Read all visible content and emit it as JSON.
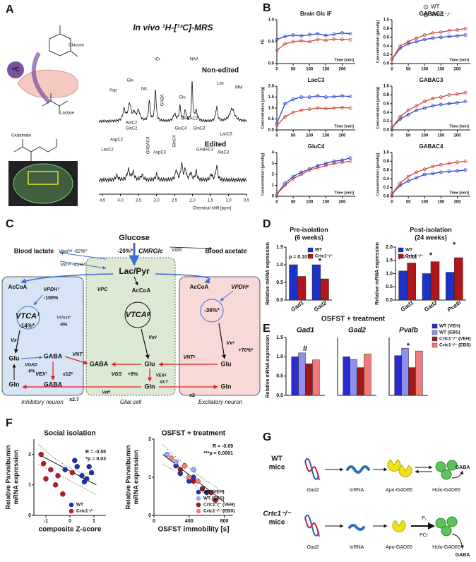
{
  "figure": {
    "letters": [
      "A",
      "B",
      "C",
      "D",
      "E",
      "F",
      "G"
    ],
    "A": [
      "In vivo ¹H-[¹³C]-MRS",
      "¹³C",
      "Glucose",
      "Lactate",
      "Glutamate",
      "Non-edited",
      "Edited",
      "Chemical shift [ppm]",
      "tCr",
      "NAA",
      "Glx",
      "Asp",
      "Glc",
      "GABA",
      "Glu",
      "Lac",
      "MM",
      "AlaC2",
      "GlxC2",
      "AspC2",
      "LacC2",
      "GABAC2",
      "GluC4",
      "GlnC3",
      "GABAC3",
      "LacC3",
      "AspC3",
      "AlaC3",
      "GlnC4",
      "GABAC4",
      "4.5",
      "4.0",
      "3.5",
      "3.0",
      "2.5",
      "2.0",
      "1.5",
      "1.0",
      "0.5"
    ],
    "C": [
      "Glucose",
      "CMRGlc",
      "-20%*",
      "Blood lactate",
      "Blood acetate",
      "Vdilᵍ",
      "Voutⁱⁿᵗ -62%*",
      "Vinⁱⁿᵗ -41%*",
      "Lac/Pyr",
      "AcCoA",
      "AcCoA",
      "AcCoA",
      "VPDHⁱ",
      "-100%",
      "VTCAⁱ",
      "-14%*",
      "VPC",
      "VTCAᵍ",
      "VPDHᵉ",
      "-36%*",
      "Vshuntⁱ",
      "-6%",
      "Vxⁱ",
      "Vxᵍ",
      "Vxᵉ",
      "+70%*",
      "Glu",
      "GABA",
      "VGAD",
      "-6%",
      "VEXⁱ",
      "x12*",
      "GABA",
      "Gln",
      "x2.7",
      "GABA",
      "Glu",
      "VNTⁱ",
      "VGS",
      "+9%",
      "Gln",
      "VNTᵉ",
      "Glu",
      "Gln",
      "x2",
      "VEXᵍ",
      "x3.7",
      "Veff",
      "Inhibitory neuron",
      "Glial cell",
      "Excitatory neuron"
    ],
    "E": [
      "OSFST + treatment"
    ],
    "G": [
      "WT",
      "mice",
      "Crtc1⁻/⁻",
      "mice",
      "Gad2",
      "mRNA",
      "Apo-GAD65",
      "Holo-GAD65",
      "GABA",
      "Gad2",
      "mRNA",
      "Apo-GAD65",
      "Holo-GAD65",
      "GABA",
      "Pᵢ",
      "PCr"
    ]
  },
  "chart_data": [
    {
      "type": "line",
      "title": "Brain Glc IF",
      "ylabel": "FE",
      "xlabel": "Time [min]",
      "legend": "top-right",
      "x": [
        0,
        25,
        50,
        75,
        100,
        125,
        150,
        175,
        200,
        225
      ],
      "xlim": [
        0,
        240
      ],
      "xticks": [
        0,
        50,
        100,
        150,
        200
      ],
      "ylim": [
        0,
        1
      ],
      "yticks": [
        {
          "value": 0,
          "label": "0.0"
        },
        0.5,
        {
          "value": 1,
          "label": "1.0"
        }
      ],
      "series": [
        {
          "name": "WT",
          "color": "#2b45d4",
          "values": [
            0.55,
            0.62,
            0.65,
            0.63,
            0.66,
            0.68,
            0.64,
            0.67,
            0.7,
            0.68
          ]
        },
        {
          "name": "Crtc1⁻/⁻",
          "color": "#d2453b",
          "values": [
            0.3,
            0.45,
            0.5,
            0.52,
            0.5,
            0.55,
            0.53,
            0.56,
            0.55,
            0.54
          ]
        }
      ]
    },
    {
      "type": "line",
      "title": "GABAC2",
      "ylabel": "Concentration [µmol/g]",
      "xlabel": "Time [min]",
      "x": [
        0,
        25,
        50,
        75,
        100,
        125,
        150,
        175,
        200,
        225
      ],
      "xlim": [
        0,
        240
      ],
      "xticks": [
        0,
        50,
        100,
        150,
        200
      ],
      "ylim": [
        0,
        1
      ],
      "yticks": [
        {
          "value": 0,
          "label": "0.0"
        },
        0.2,
        0.4,
        0.6,
        0.8,
        {
          "value": 1,
          "label": "1.0"
        }
      ],
      "series": [
        {
          "name": "WT",
          "color": "#2b45d4",
          "values": [
            0.1,
            0.35,
            0.45,
            0.5,
            0.55,
            0.58,
            0.6,
            0.62,
            0.63,
            0.65
          ]
        },
        {
          "name": "Crtc1⁻/⁻",
          "color": "#d2453b",
          "values": [
            0.1,
            0.4,
            0.5,
            0.58,
            0.65,
            0.7,
            0.72,
            0.75,
            0.77,
            0.8
          ]
        }
      ]
    },
    {
      "type": "line",
      "title": "LacC3",
      "ylabel": "Concentration [µmol/g]",
      "xlabel": "Time [min]",
      "x": [
        0,
        25,
        50,
        75,
        100,
        125,
        150,
        175,
        200,
        225
      ],
      "xlim": [
        0,
        240
      ],
      "xticks": [
        0,
        50,
        100,
        150,
        200
      ],
      "ylim": [
        0,
        2
      ],
      "yticks": [
        {
          "value": 0,
          "label": "0.0"
        },
        0.5,
        {
          "value": 1,
          "label": "1.0"
        },
        1.5,
        {
          "value": 2,
          "label": "2.0"
        }
      ],
      "series": [
        {
          "name": "WT",
          "color": "#2b45d4",
          "values": [
            0.3,
            1.2,
            1.4,
            1.5,
            1.5,
            1.55,
            1.5,
            1.52,
            1.55,
            1.53
          ]
        },
        {
          "name": "Crtc1⁻/⁻",
          "color": "#d2453b",
          "values": [
            0.2,
            0.6,
            0.8,
            0.9,
            0.95,
            1.0,
            0.98,
            1.0,
            1.02,
            1.0
          ]
        }
      ]
    },
    {
      "type": "line",
      "title": "GABAC3",
      "ylabel": "Concentration [µmol/g]",
      "xlabel": "Time [min]",
      "x": [
        0,
        25,
        50,
        75,
        100,
        125,
        150,
        175,
        200,
        225
      ],
      "xlim": [
        0,
        240
      ],
      "xticks": [
        0,
        50,
        100,
        150,
        200
      ],
      "ylim": [
        0,
        1
      ],
      "yticks": [
        {
          "value": 0,
          "label": "0.0"
        },
        0.2,
        0.4,
        0.6,
        0.8,
        {
          "value": 1,
          "label": "1.0"
        }
      ],
      "series": [
        {
          "name": "WT",
          "color": "#2b45d4",
          "values": [
            0.05,
            0.25,
            0.35,
            0.45,
            0.5,
            0.55,
            0.58,
            0.6,
            0.62,
            0.65
          ]
        },
        {
          "name": "Crtc1⁻/⁻",
          "color": "#d2453b",
          "values": [
            0.05,
            0.3,
            0.45,
            0.55,
            0.65,
            0.72,
            0.75,
            0.8,
            0.82,
            0.85
          ]
        }
      ]
    },
    {
      "type": "line",
      "title": "GluC4",
      "ylabel": "Concentration [µmol/g]",
      "xlabel": "Time [min]",
      "x": [
        0,
        25,
        50,
        75,
        100,
        125,
        150,
        175,
        200,
        225
      ],
      "xlim": [
        0,
        240
      ],
      "xticks": [
        0,
        50,
        100,
        150,
        200
      ],
      "ylim": [
        0,
        4
      ],
      "yticks": [
        0,
        1,
        2,
        3,
        4
      ],
      "series": [
        {
          "name": "WT",
          "color": "#2b45d4",
          "values": [
            0.2,
            1.2,
            1.8,
            2.2,
            2.5,
            2.8,
            3.0,
            3.2,
            3.3,
            3.5
          ]
        },
        {
          "name": "Crtc1⁻/⁻",
          "color": "#d2453b",
          "values": [
            0.2,
            1.0,
            1.6,
            2.0,
            2.4,
            2.6,
            2.8,
            3.0,
            3.1,
            3.2
          ]
        }
      ]
    },
    {
      "type": "line",
      "title": "GABAC4",
      "ylabel": "Concentration [µmol/g]",
      "xlabel": "Time [min]",
      "x": [
        0,
        25,
        50,
        75,
        100,
        125,
        150,
        175,
        200,
        225
      ],
      "xlim": [
        0,
        240
      ],
      "xticks": [
        0,
        50,
        100,
        150,
        200
      ],
      "ylim": [
        0,
        1
      ],
      "yticks": [
        {
          "value": 0,
          "label": "0.0"
        },
        0.2,
        0.4,
        0.6,
        0.8,
        {
          "value": 1,
          "label": "1.0"
        }
      ],
      "series": [
        {
          "name": "WT",
          "color": "#2b45d4",
          "values": [
            0.05,
            0.25,
            0.35,
            0.42,
            0.5,
            0.52,
            0.55,
            0.57,
            0.58,
            0.6
          ]
        },
        {
          "name": "Crtc1⁻/⁻",
          "color": "#d2453b",
          "values": [
            0.05,
            0.3,
            0.45,
            0.55,
            0.62,
            0.68,
            0.72,
            0.75,
            0.78,
            0.8
          ]
        }
      ]
    },
    {
      "type": "bar",
      "title": "Pre-isolation",
      "subtitle": "(6 weeks)",
      "ylabel": "Relative mRNA expression",
      "legend": "top-right",
      "categories": [
        "Gad1",
        "Gad2"
      ],
      "ylim": [
        0,
        1.5
      ],
      "yticks": [
        {
          "value": 0,
          "label": "0.0"
        },
        0.5,
        {
          "value": 1,
          "label": "1.0"
        },
        1.5
      ],
      "annotations": [
        "p = 0.10",
        "*"
      ],
      "series": [
        {
          "name": "WT",
          "color": "#1b33c9",
          "values": [
            1.0,
            1.0
          ]
        },
        {
          "name": "Crtc1⁻/⁻",
          "color": "#b2161b",
          "values": [
            0.67,
            0.6
          ]
        }
      ]
    },
    {
      "type": "bar",
      "title": "Post-isolation",
      "subtitle": "(24 weeks)",
      "ylabel": "Relative mRNA expression",
      "legend": "top-left",
      "categories": [
        "Gad1",
        "Gad2",
        "Pvalb"
      ],
      "ylim": [
        0,
        2
      ],
      "yticks": [
        {
          "value": 0,
          "label": "0.0"
        },
        0.5,
        {
          "value": 1,
          "label": "1.0"
        },
        1.5,
        {
          "value": 2,
          "label": "2.0"
        }
      ],
      "annotations": [
        "p = 0.11",
        "*",
        "*"
      ],
      "series": [
        {
          "name": "WT",
          "color": "#1b33c9",
          "values": [
            1.1,
            1.0,
            1.05
          ]
        },
        {
          "name": "Crtc1⁻/⁻",
          "color": "#b2161b",
          "values": [
            1.4,
            1.45,
            1.6
          ]
        }
      ]
    },
    {
      "type": "bar",
      "title": "Gad1",
      "ylabel": "Relative mRNA expression",
      "categories": [
        null
      ],
      "ylim": [
        0,
        1.5
      ],
      "yticks": [
        {
          "value": 0,
          "label": "0.0"
        },
        0.5,
        {
          "value": 1,
          "label": "1.0"
        },
        1.5
      ],
      "annotations": [
        "#"
      ],
      "series": [
        {
          "name": "WT (VEH)",
          "color": "#2b2bd6",
          "values": [
            1.0
          ]
        },
        {
          "name": "WT (EBS)",
          "color": "#8f8fef",
          "values": [
            1.1
          ]
        },
        {
          "name": "Crtc1⁻/⁻ (VEH)",
          "color": "#a01818",
          "values": [
            0.82
          ]
        },
        {
          "name": "Crtc1⁻/⁻ (EBS)",
          "color": "#f07a7a",
          "values": [
            0.92
          ]
        }
      ]
    },
    {
      "type": "bar",
      "title": "Gad2",
      "categories": [
        null
      ],
      "ylim": [
        0,
        1.5
      ],
      "annotations": [
        "*"
      ],
      "series": [
        {
          "name": "WT (VEH)",
          "color": "#2b2bd6",
          "values": [
            1.0
          ]
        },
        {
          "name": "WT (EBS)",
          "color": "#8f8fef",
          "values": [
            0.93
          ]
        },
        {
          "name": "Crtc1⁻/⁻ (VEH)",
          "color": "#a01818",
          "values": [
            0.72
          ]
        },
        {
          "name": "Crtc1⁻/⁻ (EBS)",
          "color": "#f07a7a",
          "values": [
            1.07
          ]
        }
      ]
    },
    {
      "type": "bar",
      "title": "Pvalb",
      "categories": [
        null
      ],
      "ylim": [
        0,
        1.5
      ],
      "annotations": [
        "*"
      ],
      "legend": "right",
      "series": [
        {
          "name": "WT (VEH)",
          "color": "#2b2bd6",
          "values": [
            1.03
          ]
        },
        {
          "name": "WT (EBS)",
          "color": "#8f8fef",
          "values": [
            1.22
          ]
        },
        {
          "name": "Crtc1⁻/⁻ (VEH)",
          "color": "#a01818",
          "values": [
            0.72
          ]
        },
        {
          "name": "Crtc1⁻/⁻ (EBS)",
          "color": "#f07a7a",
          "values": [
            1.15
          ]
        }
      ]
    },
    {
      "type": "scatter",
      "title": "Social isolation",
      "xlabel": "composite Z-score",
      "ylabel": [
        "Relative Parvalbumin",
        "mRNA expression"
      ],
      "legend": "bottom-right",
      "annotations": [
        "R = -0.55",
        "*p = 0.03"
      ],
      "xlim": [
        -1.5,
        1.5
      ],
      "xticks": [
        -1,
        0,
        1
      ],
      "ylim": [
        0,
        2.5
      ],
      "yticks": [
        0,
        1,
        2
      ],
      "series": [
        {
          "name": "WT",
          "color": "#1b2fbf",
          "x": [
            -0.2,
            0.3,
            0.5,
            0.7,
            0.8,
            0.9,
            0.2,
            0.6
          ],
          "values": [
            1.5,
            1.6,
            1.3,
            1.2,
            1.6,
            1.4,
            1.8,
            1.1
          ]
        },
        {
          "name": "Crtc1⁻/⁻",
          "color": "#c0161b",
          "x": [
            -1.1,
            -1.0,
            -0.8,
            -0.6,
            -0.3,
            -0.5,
            0.1,
            -1.2
          ],
          "values": [
            1.7,
            1.2,
            1.5,
            1.0,
            0.7,
            1.3,
            1.4,
            2.0
          ]
        }
      ]
    },
    {
      "type": "scatter",
      "title": "OSFST + treatment",
      "xlabel": "OSFST immobility [s]",
      "ylabel": [
        "Relative Parvalbumin",
        "mRNA expression"
      ],
      "legend": "bottom-right",
      "annotations": [
        "R = -0.69",
        "***p = 0.0001"
      ],
      "xlim": [
        0,
        900
      ],
      "xticks": [
        0,
        400,
        800
      ],
      "ylim": [
        0,
        2
      ],
      "yticks": [
        0,
        1,
        2
      ],
      "series": [
        {
          "name": "WT (VEH)",
          "color": "#1f2fbf",
          "x": [
            250,
            300,
            400,
            450,
            600
          ],
          "values": [
            1.3,
            1.1,
            0.9,
            1.0,
            0.6
          ]
        },
        {
          "name": "WT (EBS)",
          "color": "#9ea8f0",
          "x": [
            150,
            250,
            350,
            450
          ],
          "values": [
            1.6,
            1.4,
            1.3,
            1.2
          ]
        },
        {
          "name": "Crtc1⁻/⁻ (VEH)",
          "color": "#a01818",
          "x": [
            300,
            450,
            550,
            650,
            700
          ],
          "values": [
            1.2,
            0.9,
            0.7,
            0.6,
            0.4
          ]
        },
        {
          "name": "Crtc1⁻/⁻ (EBS)",
          "color": "#f08080",
          "x": [
            200,
            350,
            400,
            500
          ],
          "values": [
            1.5,
            1.3,
            1.0,
            0.9
          ]
        }
      ]
    }
  ]
}
